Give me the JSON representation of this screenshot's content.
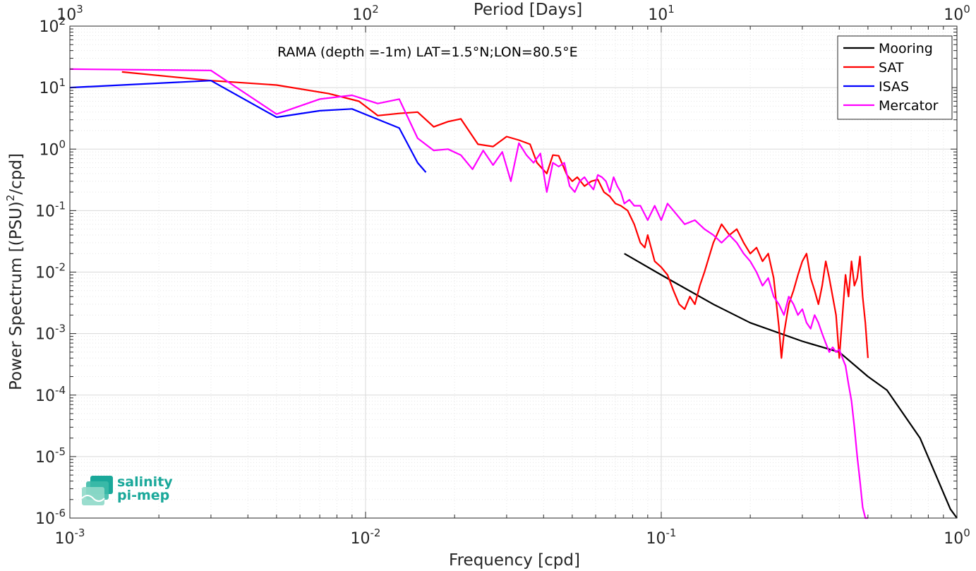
{
  "chart_data": {
    "type": "line",
    "title": "RAMA (depth =-1m) LAT=1.5°N;LON=80.5°E",
    "xlabel": "Frequency [cpd]",
    "ylabel": "Power Spectrum [(PSU)^2/cpd]",
    "ylabel_parts": {
      "pre": "Power Spectrum [(PSU)",
      "sup": "2",
      "post": "/cpd]"
    },
    "x2label": "Period [Days]",
    "xscale": "log",
    "yscale": "log",
    "xlim": [
      0.001,
      1
    ],
    "ylim": [
      1e-06,
      100
    ],
    "grid": true,
    "legend_position": "top-right",
    "xticks": [
      0.001,
      0.01,
      0.1,
      1
    ],
    "xtick_labels": [
      {
        "base": "10",
        "exp": "-3"
      },
      {
        "base": "10",
        "exp": "-2"
      },
      {
        "base": "10",
        "exp": "-1"
      },
      {
        "base": "10",
        "exp": "0"
      }
    ],
    "x2tick_labels": [
      {
        "base": "10",
        "exp": "3"
      },
      {
        "base": "10",
        "exp": "2"
      },
      {
        "base": "10",
        "exp": "1"
      },
      {
        "base": "10",
        "exp": "0"
      }
    ],
    "yticks": [
      1e-06,
      1e-05,
      0.0001,
      0.001,
      0.01,
      0.1,
      1,
      10,
      100
    ],
    "ytick_labels": [
      {
        "base": "10",
        "exp": "-6"
      },
      {
        "base": "10",
        "exp": "-5"
      },
      {
        "base": "10",
        "exp": "-4"
      },
      {
        "base": "10",
        "exp": "-3"
      },
      {
        "base": "10",
        "exp": "-2"
      },
      {
        "base": "10",
        "exp": "-1"
      },
      {
        "base": "10",
        "exp": "0"
      },
      {
        "base": "10",
        "exp": "1"
      },
      {
        "base": "10",
        "exp": "2"
      }
    ],
    "series": [
      {
        "name": "Mooring",
        "color": "#000000",
        "x": [
          0.075,
          0.1,
          0.15,
          0.2,
          0.3,
          0.4,
          0.5,
          0.58,
          0.75,
          0.95,
          1.0
        ],
        "y": [
          0.02,
          0.009,
          0.003,
          0.0015,
          0.00075,
          0.0005,
          0.0002,
          0.00012,
          2e-05,
          1.4e-06,
          1e-06
        ]
      },
      {
        "name": "SAT",
        "color": "#ff0000",
        "x": [
          0.0015,
          0.003,
          0.005,
          0.0075,
          0.0095,
          0.011,
          0.013,
          0.015,
          0.017,
          0.019,
          0.021,
          0.024,
          0.027,
          0.03,
          0.033,
          0.036,
          0.038,
          0.041,
          0.043,
          0.045,
          0.048,
          0.05,
          0.052,
          0.055,
          0.058,
          0.061,
          0.064,
          0.067,
          0.07,
          0.073,
          0.077,
          0.081,
          0.085,
          0.088,
          0.09,
          0.095,
          0.1,
          0.105,
          0.11,
          0.115,
          0.12,
          0.125,
          0.13,
          0.135,
          0.14,
          0.15,
          0.16,
          0.17,
          0.18,
          0.19,
          0.2,
          0.21,
          0.22,
          0.23,
          0.24,
          0.25,
          0.255,
          0.26,
          0.27,
          0.28,
          0.29,
          0.3,
          0.31,
          0.32,
          0.33,
          0.34,
          0.35,
          0.36,
          0.37,
          0.38,
          0.39,
          0.4,
          0.41,
          0.42,
          0.43,
          0.44,
          0.45,
          0.46,
          0.47,
          0.48,
          0.49,
          0.5
        ],
        "y": [
          18,
          13,
          11,
          8,
          6,
          3.5,
          3.8,
          4,
          2.3,
          2.8,
          3.1,
          1.2,
          1.1,
          1.6,
          1.4,
          1.2,
          0.6,
          0.4,
          0.8,
          0.78,
          0.38,
          0.3,
          0.35,
          0.25,
          0.3,
          0.32,
          0.2,
          0.17,
          0.13,
          0.12,
          0.1,
          0.06,
          0.03,
          0.025,
          0.04,
          0.015,
          0.012,
          0.009,
          0.005,
          0.003,
          0.0025,
          0.004,
          0.003,
          0.006,
          0.01,
          0.03,
          0.06,
          0.04,
          0.05,
          0.03,
          0.02,
          0.025,
          0.015,
          0.02,
          0.008,
          0.0013,
          0.0004,
          0.001,
          0.003,
          0.005,
          0.009,
          0.015,
          0.02,
          0.008,
          0.005,
          0.003,
          0.006,
          0.015,
          0.008,
          0.004,
          0.002,
          0.0004,
          0.002,
          0.009,
          0.004,
          0.015,
          0.006,
          0.008,
          0.018,
          0.004,
          0.0015,
          0.0004
        ]
      },
      {
        "name": "ISAS",
        "color": "#0000ff",
        "x": [
          0.001,
          0.003,
          0.005,
          0.007,
          0.009,
          0.013,
          0.015,
          0.016
        ],
        "y": [
          10,
          13,
          3.3,
          4.2,
          4.5,
          2.2,
          0.6,
          0.42
        ]
      },
      {
        "name": "Mercator",
        "color": "#ff00ff",
        "x": [
          0.001,
          0.003,
          0.005,
          0.007,
          0.009,
          0.011,
          0.013,
          0.015,
          0.017,
          0.019,
          0.021,
          0.023,
          0.025,
          0.027,
          0.029,
          0.031,
          0.033,
          0.035,
          0.037,
          0.039,
          0.041,
          0.043,
          0.045,
          0.047,
          0.049,
          0.051,
          0.053,
          0.055,
          0.057,
          0.059,
          0.061,
          0.063,
          0.065,
          0.067,
          0.069,
          0.071,
          0.073,
          0.075,
          0.078,
          0.081,
          0.085,
          0.09,
          0.095,
          0.1,
          0.105,
          0.11,
          0.12,
          0.13,
          0.14,
          0.15,
          0.16,
          0.17,
          0.18,
          0.19,
          0.2,
          0.21,
          0.22,
          0.23,
          0.24,
          0.25,
          0.26,
          0.27,
          0.28,
          0.29,
          0.3,
          0.31,
          0.32,
          0.33,
          0.34,
          0.35,
          0.36,
          0.37,
          0.38,
          0.39,
          0.4,
          0.41,
          0.42,
          0.43,
          0.44,
          0.45,
          0.46,
          0.47,
          0.48,
          0.49,
          0.5
        ],
        "y": [
          20,
          19,
          3.7,
          6.5,
          7.5,
          5.5,
          6.5,
          1.5,
          0.95,
          1,
          0.8,
          0.47,
          0.95,
          0.55,
          0.9,
          0.3,
          1.25,
          0.8,
          0.6,
          0.85,
          0.2,
          0.6,
          0.52,
          0.6,
          0.25,
          0.2,
          0.3,
          0.35,
          0.27,
          0.22,
          0.38,
          0.35,
          0.3,
          0.2,
          0.35,
          0.25,
          0.2,
          0.13,
          0.15,
          0.12,
          0.12,
          0.07,
          0.12,
          0.07,
          0.13,
          0.1,
          0.06,
          0.07,
          0.05,
          0.04,
          0.03,
          0.04,
          0.03,
          0.02,
          0.015,
          0.01,
          0.006,
          0.008,
          0.004,
          0.003,
          0.002,
          0.004,
          0.003,
          0.002,
          0.0025,
          0.0015,
          0.0012,
          0.002,
          0.0015,
          0.001,
          0.0007,
          0.0005,
          0.0006,
          0.0005,
          0.00055,
          0.0004,
          0.0003,
          0.00015,
          8e-05,
          3e-05,
          1e-05,
          4e-06,
          1.5e-06,
          1e-06,
          1e-06
        ]
      }
    ]
  },
  "logo": {
    "line1": "salinity",
    "line2": "pi-mep"
  }
}
